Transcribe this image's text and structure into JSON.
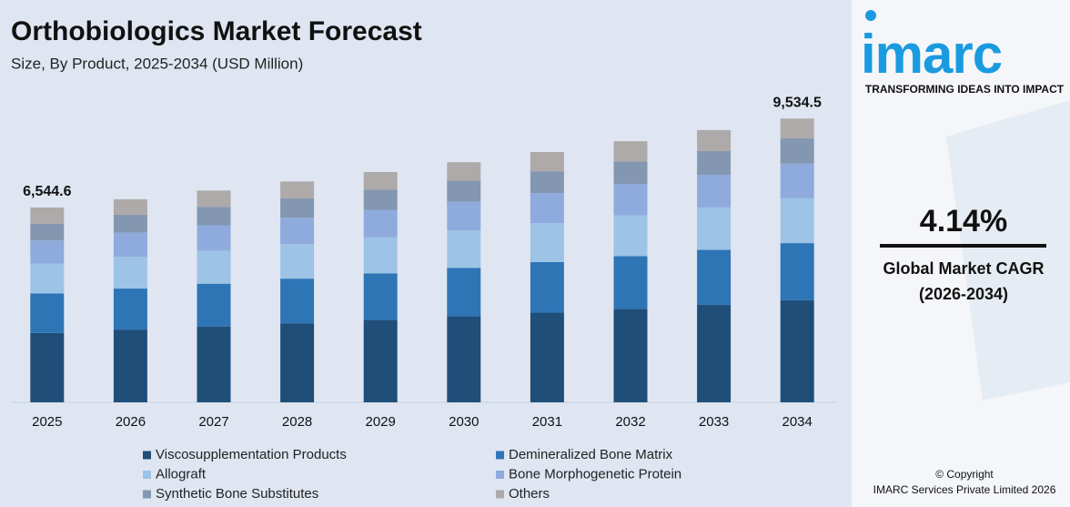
{
  "chart_data": {
    "type": "stacked-bar",
    "title": "Orthobiologics Market Forecast",
    "subtitle": "Size, By Product, 2025-2034 (USD Million)",
    "categories": [
      "2025",
      "2026",
      "2027",
      "2028",
      "2029",
      "2030",
      "2031",
      "2032",
      "2033",
      "2034"
    ],
    "series": [
      {
        "name": "Viscosupplementation Products",
        "color": "#1f4e79",
        "values": [
          2329.9,
          2443,
          2548,
          2656,
          2770,
          2888,
          3011,
          3140,
          3274,
          3432.4
        ]
      },
      {
        "name": "Demineralized Bone Matrix",
        "color": "#2e75b6",
        "values": [
          1328.6,
          1378,
          1437,
          1499,
          1563,
          1630,
          1699,
          1772,
          1847,
          1916.4
        ]
      },
      {
        "name": "Allograft",
        "color": "#9dc3e6",
        "values": [
          1001.3,
          1065,
          1110,
          1158,
          1207,
          1258,
          1312,
          1368,
          1427,
          1516.0
        ]
      },
      {
        "name": "Bone Morphogenetic Protein",
        "color": "#8faadc",
        "values": [
          778.8,
          819,
          854,
          890,
          928,
          968,
          1009,
          1053,
          1098,
          1153.7
        ]
      },
      {
        "name": "Synthetic Bone Substitutes",
        "color": "#8497b0",
        "values": [
          556.3,
          594,
          619,
          646,
          673,
          702,
          732,
          763,
          796,
          848.6
        ]
      },
      {
        "name": "Others",
        "color": "#aeaaaa",
        "values": [
          549.7,
          525,
          548,
          571,
          596,
          621,
          648,
          675,
          704,
          667.4
        ]
      }
    ],
    "annotations": [
      {
        "category": "2025",
        "value": 6544.6,
        "label": "6,544.6"
      },
      {
        "category": "2034",
        "value": 9534.5,
        "label": "9,534.5"
      }
    ],
    "ylim": [
      0,
      10000
    ],
    "grid": false
  },
  "sidebar": {
    "logo": "imarc",
    "tagline": "TRANSFORMING IDEAS INTO IMPACT",
    "cagr": "4.14%",
    "cagr_label": "Global Market CAGR",
    "cagr_period": "(2026-2034)",
    "copyright": "© Copyright",
    "company": "IMARC Services Private Limited 2026"
  }
}
